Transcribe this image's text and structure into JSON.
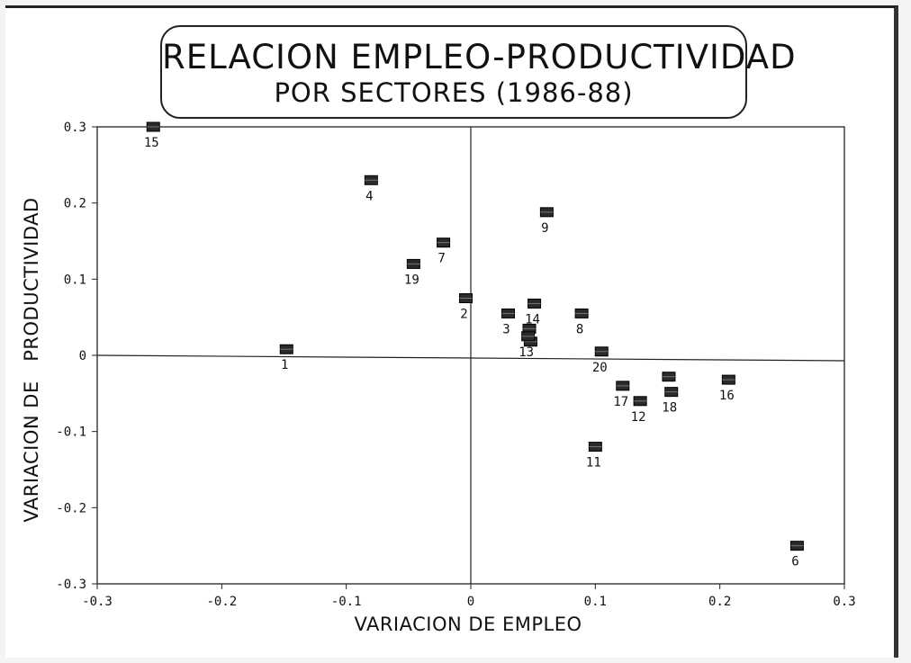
{
  "title": {
    "line1": "RELACION EMPLEO-PRODUCTIVIDAD",
    "line2": "POR SECTORES (1986-88)"
  },
  "chart_data": {
    "type": "scatter",
    "title": "RELACION EMPLEO-PRODUCTIVIDAD POR SECTORES (1986-88)",
    "xlabel": "VARIACION DE EMPLEO",
    "ylabel": "VARIACION DE   PRODUCTIVIDAD",
    "xlim": [
      -0.3,
      0.3
    ],
    "ylim": [
      -0.3,
      0.3
    ],
    "x_ticks": [
      "-0.3",
      "-0.2",
      "-0.1",
      "0",
      "0.1",
      "0.2",
      "0.3"
    ],
    "y_ticks": [
      "0.3",
      "0.2",
      "0.1",
      "0",
      "-0.1",
      "-0.2",
      "-0.3"
    ],
    "grid": false,
    "reference_lines": {
      "x": 0,
      "y": 0
    },
    "points": [
      {
        "label": "15",
        "x": -0.255,
        "y": 0.3
      },
      {
        "label": "4",
        "x": -0.08,
        "y": 0.23
      },
      {
        "label": "7",
        "x": -0.022,
        "y": 0.148
      },
      {
        "label": "19",
        "x": -0.046,
        "y": 0.12
      },
      {
        "label": "2",
        "x": -0.004,
        "y": 0.075
      },
      {
        "label": "1",
        "x": -0.148,
        "y": 0.008
      },
      {
        "label": "9",
        "x": 0.061,
        "y": 0.188
      },
      {
        "label": "14",
        "x": 0.051,
        "y": 0.068
      },
      {
        "label": "3",
        "x": 0.03,
        "y": 0.055
      },
      {
        "label": "8",
        "x": 0.089,
        "y": 0.055
      },
      {
        "label": "13",
        "x": 0.046,
        "y": 0.025
      },
      {
        "label": "20",
        "x": 0.105,
        "y": 0.005
      },
      {
        "label": "17",
        "x": 0.122,
        "y": -0.04
      },
      {
        "label": "12",
        "x": 0.136,
        "y": -0.06
      },
      {
        "label": "18",
        "x": 0.161,
        "y": -0.048
      },
      {
        "label": "16",
        "x": 0.207,
        "y": -0.032
      },
      {
        "label": "11",
        "x": 0.1,
        "y": -0.12
      },
      {
        "label": "6",
        "x": 0.262,
        "y": -0.25
      }
    ],
    "extra_markers": [
      {
        "x": 0.047,
        "y": 0.035
      },
      {
        "x": 0.048,
        "y": 0.018
      },
      {
        "x": 0.159,
        "y": -0.028
      }
    ]
  }
}
